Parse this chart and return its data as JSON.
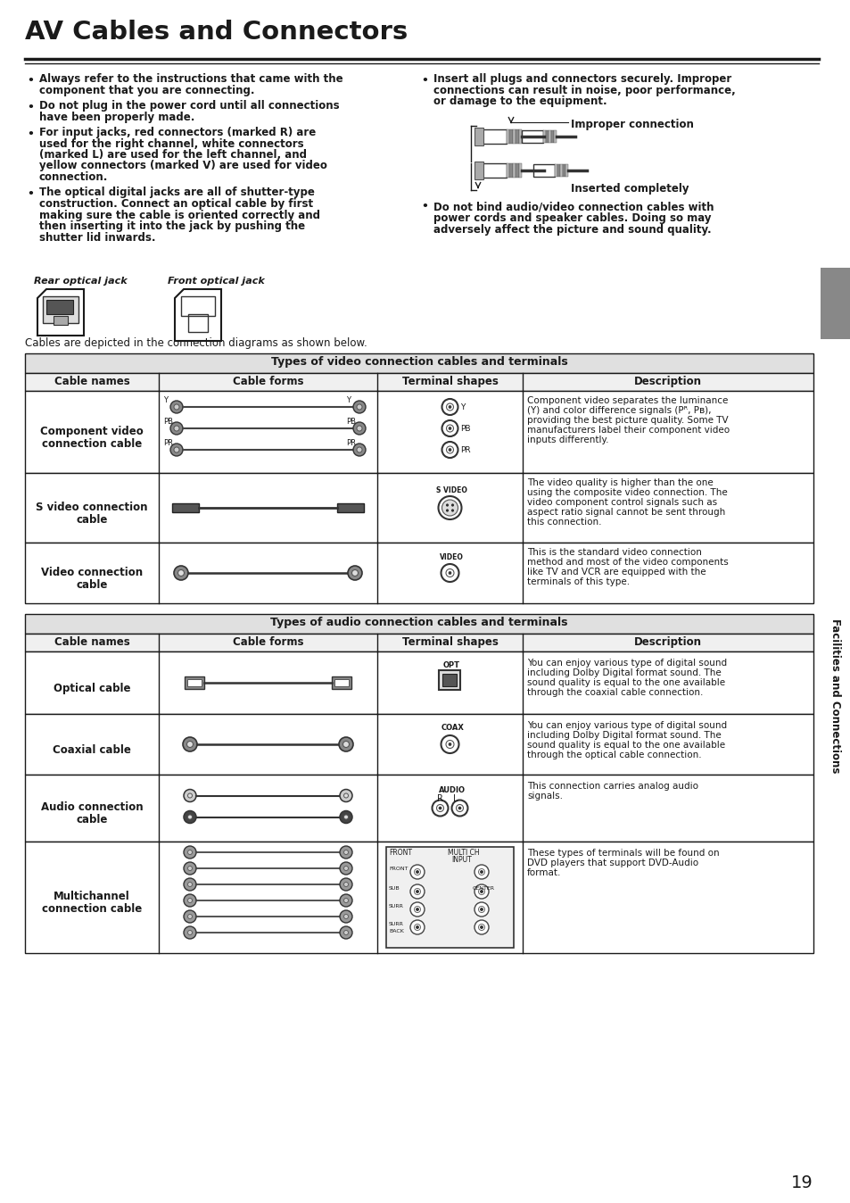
{
  "title": "AV Cables and Connectors",
  "page_number": "19",
  "sidebar_text": "Facilities and Connections",
  "background_color": "#ffffff",
  "text_color": "#1a1a1a",
  "bullet_points_left": [
    [
      "Always refer to the instructions that came with the",
      "component that you are connecting."
    ],
    [
      "Do not plug in the power cord until all connections",
      "have been properly made."
    ],
    [
      "For input jacks, red connectors (marked R) are",
      "used for the right channel, white connectors",
      "(marked L) are used for the left channel, and",
      "yellow connectors (marked V) are used for video",
      "connection."
    ],
    [
      "The optical digital jacks are all of shutter-type",
      "construction. Connect an optical cable by first",
      "making sure the cable is oriented correctly and",
      "then inserting it into the jack by pushing the",
      "shutter lid inwards."
    ]
  ],
  "bullet_points_right": [
    [
      "Insert all plugs and connectors securely. Improper",
      "connections can result in noise, poor performance,",
      "or damage to the equipment."
    ],
    [
      "Do not bind audio/video connection cables with",
      "power cords and speaker cables. Doing so may",
      "adversely affect the picture and sound quality."
    ]
  ],
  "improper_label": "Improper connection",
  "inserted_label": "Inserted completely",
  "optical_jack_label_left": "Rear optical jack",
  "optical_jack_label_right": "Front optical jack",
  "cables_intro": "Cables are depicted in the connection diagrams as shown below.",
  "video_table_title": "Types of video connection cables and terminals",
  "audio_table_title": "Types of audio connection cables and terminals",
  "table_headers": [
    "Cable names",
    "Cable forms",
    "Terminal shapes",
    "Description"
  ],
  "video_rows": [
    {
      "name": "Component video\nconnection cable",
      "description": [
        "Component video separates the luminance",
        "(Y) and color difference signals (Pᴿ, Pʙ),",
        "providing the best picture quality. Some TV",
        "manufacturers label their component video",
        "inputs differently."
      ]
    },
    {
      "name": "S video connection\ncable",
      "description": [
        "The video quality is higher than the one",
        "using the composite video connection. The",
        "video component control signals such as",
        "aspect ratio signal cannot be sent through",
        "this connection."
      ]
    },
    {
      "name": "Video connection\ncable",
      "description": [
        "This is the standard video connection",
        "method and most of the video components",
        "like TV and VCR are equipped with the",
        "terminals of this type."
      ]
    }
  ],
  "audio_rows": [
    {
      "name": "Optical cable",
      "description": [
        "You can enjoy various type of digital sound",
        "including Dolby Digital format sound. The",
        "sound quality is equal to the one available",
        "through the coaxial cable connection."
      ]
    },
    {
      "name": "Coaxial cable",
      "description": [
        "You can enjoy various type of digital sound",
        "including Dolby Digital format sound. The",
        "sound quality is equal to the one available",
        "through the optical cable connection."
      ]
    },
    {
      "name": "Audio connection\ncable",
      "description": [
        "This connection carries analog audio",
        "signals."
      ]
    },
    {
      "name": "Multichannel\nconnection cable",
      "description": [
        "These types of terminals will be found on",
        "DVD players that support DVD-Audio",
        "format."
      ]
    }
  ],
  "sidebar_gray_top": "#888888",
  "sidebar_text_color": "#1a1a1a"
}
